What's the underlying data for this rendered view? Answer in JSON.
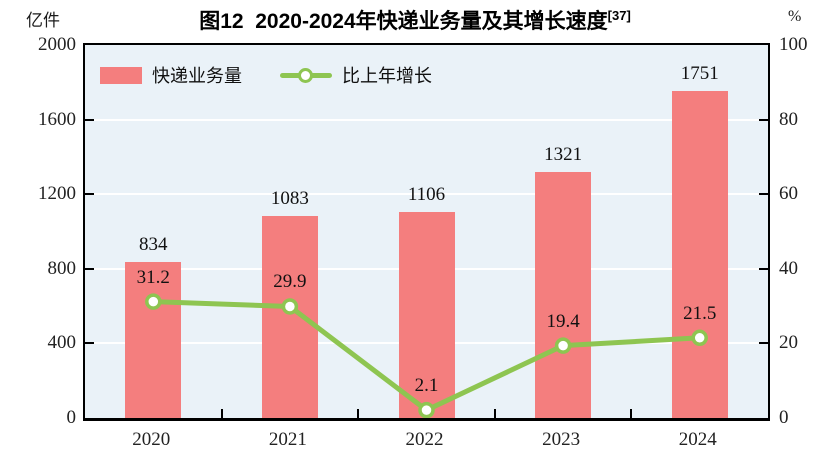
{
  "header": {
    "title_main": "图12  2020-2024年快递业务量及其增长速度",
    "title_sup": "[37]"
  },
  "chart_data": {
    "type": "bar",
    "title": "图12 2020-2024年快递业务量及其增长速度[37]",
    "categories": [
      "2020",
      "2021",
      "2022",
      "2023",
      "2024"
    ],
    "series": [
      {
        "name": "快递业务量",
        "type": "bar",
        "axis": "left",
        "values": [
          834,
          1083,
          1106,
          1321,
          1751
        ],
        "color": "#f47e7e"
      },
      {
        "name": "比上年增长",
        "type": "line",
        "axis": "right",
        "values": [
          31.2,
          29.9,
          2.1,
          19.4,
          21.5
        ],
        "color": "#8ec551"
      }
    ],
    "left_axis": {
      "label": "亿件",
      "ticks": [
        0,
        400,
        800,
        1200,
        1600,
        2000
      ],
      "range": [
        0,
        2000
      ]
    },
    "right_axis": {
      "label": "%",
      "ticks": [
        0,
        20,
        40,
        60,
        80,
        100
      ],
      "range": [
        0,
        100
      ]
    },
    "grid": true,
    "grid_color": "#ffffff",
    "plot_bg": "#eaf2f8",
    "legend_position": "top-left"
  }
}
